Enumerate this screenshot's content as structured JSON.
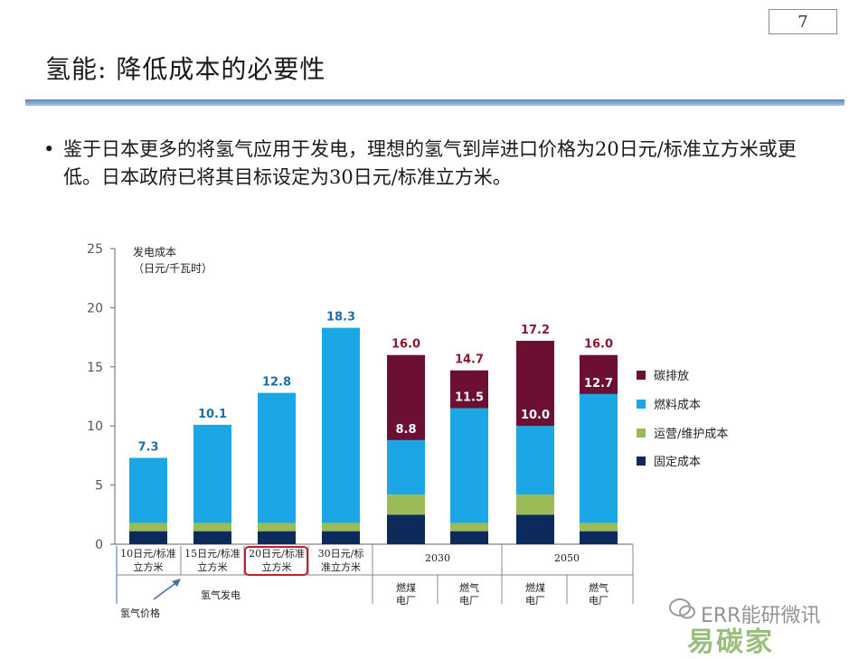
{
  "slide": {
    "page_number": "7",
    "title": "氢能:    降低成本的必要性",
    "bullet_text": "鉴于日本更多的将氢气应用于发电，理想的氢气到岸进口价格为20日元/标准立方米或更低。日本政府已将其目标设定为30日元/标准立方米。"
  },
  "watermark": {
    "main": "ERR能研微讯",
    "sub": "易碳家"
  },
  "chart_data": {
    "type": "bar",
    "stacked": true,
    "ylabel": "发电成本",
    "ylabel_unit": "（日元/千瓦时）",
    "ylim": [
      0,
      25
    ],
    "yticks": [
      0,
      5,
      10,
      15,
      20,
      25
    ],
    "grid": false,
    "legend_position": "right",
    "categories": [
      "10日元/标准立方米",
      "15日元/标准立方米",
      "20日元/标准立方米",
      "30日元/标准立方米",
      "燃煤电厂",
      "燃气电厂",
      "燃煤电厂",
      "燃气电厂"
    ],
    "category_label_lines": [
      [
        "10日元/标准",
        "立方米"
      ],
      [
        "15日元/标准",
        "立方米"
      ],
      [
        "20日元/标准",
        "立方米"
      ],
      [
        "30日元/标",
        "准立方米"
      ],
      [
        "燃煤",
        "电厂"
      ],
      [
        "燃气",
        "电厂"
      ],
      [
        "燃煤",
        "电厂"
      ],
      [
        "燃气",
        "电厂"
      ]
    ],
    "highlighted_category_index": 2,
    "group_labels": [
      {
        "label": "氢气发电",
        "categories": [
          0,
          1,
          2,
          3
        ]
      },
      {
        "label": "2030",
        "categories": [
          4,
          5
        ]
      },
      {
        "label": "2050",
        "categories": [
          6,
          7
        ]
      }
    ],
    "annotation": "氢气价格",
    "series": [
      {
        "name": "固定成本",
        "color": "#0d2a5c",
        "values": [
          1.1,
          1.1,
          1.1,
          1.1,
          2.5,
          1.1,
          2.5,
          1.1
        ]
      },
      {
        "name": "运营/维护成本",
        "color": "#9bbb59",
        "values": [
          0.7,
          0.7,
          0.7,
          0.7,
          1.7,
          0.7,
          1.7,
          0.7
        ]
      },
      {
        "name": "燃料成本",
        "color": "#1ba7e6",
        "values": [
          5.5,
          8.3,
          11.0,
          16.5,
          4.6,
          9.7,
          5.8,
          10.9
        ]
      },
      {
        "name": "碳排放",
        "color": "#6b0f33",
        "values": [
          0,
          0,
          0,
          0,
          7.2,
          3.2,
          7.2,
          3.3
        ]
      }
    ],
    "legend_order": [
      "碳排放",
      "燃料成本",
      "运营/维护成本",
      "固定成本"
    ],
    "total_labels": [
      "7.3",
      "10.1",
      "12.8",
      "18.3",
      "16.0",
      "14.7",
      "17.2",
      "16.0"
    ],
    "inner_labels": [
      null,
      null,
      null,
      null,
      "8.8",
      "11.5",
      "10.0",
      "12.7"
    ],
    "total_label_colors": [
      "#1a6fb0",
      "#1a6fb0",
      "#1a6fb0",
      "#1a6fb0",
      "#8b1a2e",
      "#8b1a2e",
      "#8b1a2e",
      "#8b1a2e"
    ]
  }
}
